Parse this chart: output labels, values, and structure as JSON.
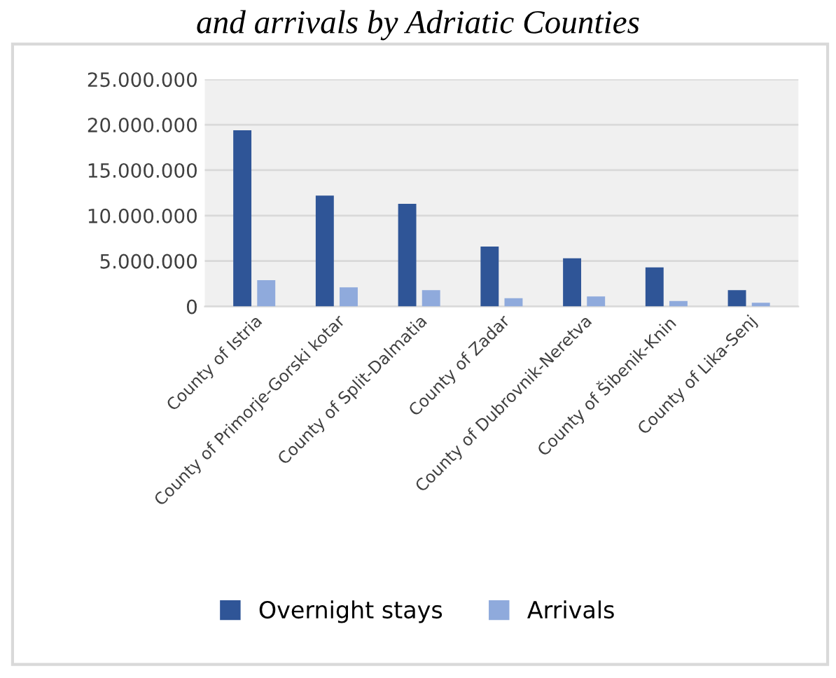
{
  "chart_data": {
    "type": "bar",
    "title": "and arrivals by Adriatic Counties",
    "categories": [
      "County of Istria",
      "County of Primorje-Gorski kotar",
      "County of Split-Dalmatia",
      "County of Zadar",
      "County of Dubrovnik-Neretva",
      "County of Šibenik-Knin",
      "County of Lika-Senj"
    ],
    "series": [
      {
        "name": "Overnight stays",
        "color": "#2f5597",
        "values": [
          19400000,
          12200000,
          11300000,
          6600000,
          5300000,
          4300000,
          1800000
        ]
      },
      {
        "name": "Arrivals",
        "color": "#8faadc",
        "values": [
          2900000,
          2100000,
          1800000,
          900000,
          1100000,
          600000,
          400000
        ]
      }
    ],
    "ylim": [
      0,
      25000000
    ],
    "yticks": [
      {
        "value": 0,
        "label": "0"
      },
      {
        "value": 5000000,
        "label": "5.000.000"
      },
      {
        "value": 10000000,
        "label": "10.000.000"
      },
      {
        "value": 15000000,
        "label": "15.000.000"
      },
      {
        "value": 20000000,
        "label": "20.000.000"
      },
      {
        "value": 25000000,
        "label": "25.000.000"
      }
    ],
    "grid": "y",
    "legend": "bottom"
  }
}
